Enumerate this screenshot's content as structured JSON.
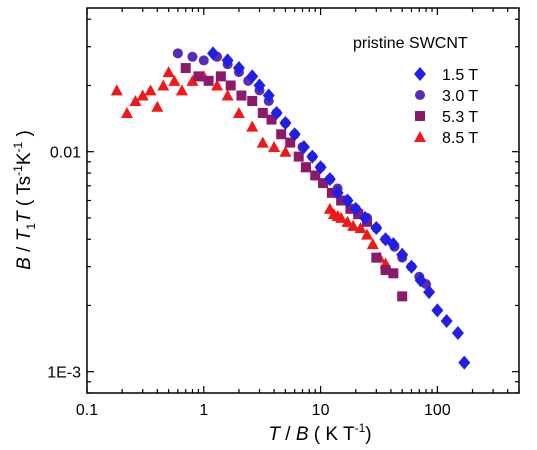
{
  "chart_data": {
    "type": "scatter",
    "title": "",
    "x_scale": "log",
    "y_scale": "log",
    "xlim": [
      0.1,
      500
    ],
    "ylim": [
      0.0008,
      0.045
    ],
    "x_ticks": [
      {
        "value": 0.1,
        "label": "0.1"
      },
      {
        "value": 1,
        "label": "1"
      },
      {
        "value": 10,
        "label": "10"
      },
      {
        "value": 100,
        "label": "100"
      }
    ],
    "y_ticks": [
      {
        "value": 0.001,
        "label": "1E-3"
      },
      {
        "value": 0.01,
        "label": "0.01"
      }
    ],
    "xlabel": {
      "italic1": "T",
      "plain1": " / ",
      "italic2": "B",
      "plain2": " ( K T",
      "sup": "-1",
      "plain3": ")"
    },
    "ylabel": {
      "italic1": "B",
      "plain1": " / ",
      "italic2": "T",
      "sub": "1",
      "italic3": "T",
      "plain2": " ( Ts",
      "sup1": "-1",
      "plain3": "K",
      "sup2": "-1",
      "plain4": " )"
    },
    "legend": {
      "title": "pristine SWCNT",
      "position": "top-right"
    },
    "series": [
      {
        "name": "1.5 T",
        "marker": "diamond",
        "color": "#1f1fe6",
        "points": [
          [
            1.2,
            0.028
          ],
          [
            1.6,
            0.026
          ],
          [
            2.0,
            0.024
          ],
          [
            2.6,
            0.022
          ],
          [
            3.0,
            0.02
          ],
          [
            3.6,
            0.018
          ],
          [
            4.2,
            0.015
          ],
          [
            5.0,
            0.0135
          ],
          [
            6.0,
            0.012
          ],
          [
            7.2,
            0.0105
          ],
          [
            8.5,
            0.0095
          ],
          [
            10,
            0.0085
          ],
          [
            12,
            0.0075
          ],
          [
            14,
            0.0065
          ],
          [
            17,
            0.006
          ],
          [
            20,
            0.0055
          ],
          [
            24,
            0.005
          ],
          [
            30,
            0.0045
          ],
          [
            36,
            0.004
          ],
          [
            42,
            0.0038
          ],
          [
            50,
            0.0034
          ],
          [
            60,
            0.003
          ],
          [
            72,
            0.0026
          ],
          [
            85,
            0.0023
          ],
          [
            100,
            0.0019
          ],
          [
            120,
            0.0017
          ],
          [
            150,
            0.0015
          ],
          [
            170,
            0.0011
          ]
        ]
      },
      {
        "name": "3.0 T",
        "marker": "circle",
        "color": "#5a2ab8",
        "points": [
          [
            0.6,
            0.028
          ],
          [
            0.8,
            0.027
          ],
          [
            1.0,
            0.026
          ],
          [
            1.3,
            0.027
          ],
          [
            1.6,
            0.025
          ],
          [
            2.0,
            0.023
          ],
          [
            2.4,
            0.021
          ],
          [
            3.0,
            0.019
          ],
          [
            3.6,
            0.017
          ],
          [
            4.2,
            0.015
          ],
          [
            5.0,
            0.0135
          ],
          [
            6.0,
            0.012
          ],
          [
            7.0,
            0.0105
          ],
          [
            8.5,
            0.0095
          ],
          [
            10,
            0.0085
          ],
          [
            12,
            0.0075
          ],
          [
            14,
            0.0068
          ],
          [
            17,
            0.006
          ],
          [
            20,
            0.0055
          ],
          [
            25,
            0.005
          ],
          [
            30,
            0.0045
          ],
          [
            36,
            0.004
          ],
          [
            43,
            0.0037
          ],
          [
            50,
            0.0033
          ],
          [
            60,
            0.003
          ],
          [
            70,
            0.0027
          ],
          [
            80,
            0.0025
          ]
        ]
      },
      {
        "name": "5.3 T",
        "marker": "square",
        "color": "#8c1a6a",
        "points": [
          [
            0.7,
            0.024
          ],
          [
            0.9,
            0.022
          ],
          [
            1.1,
            0.021
          ],
          [
            1.4,
            0.022
          ],
          [
            1.7,
            0.02
          ],
          [
            2.1,
            0.018
          ],
          [
            2.6,
            0.017
          ],
          [
            3.2,
            0.015
          ],
          [
            3.8,
            0.014
          ],
          [
            4.6,
            0.012
          ],
          [
            5.5,
            0.011
          ],
          [
            6.5,
            0.0095
          ],
          [
            7.5,
            0.0085
          ],
          [
            9.0,
            0.0078
          ],
          [
            10.5,
            0.0072
          ],
          [
            12.5,
            0.0065
          ],
          [
            15,
            0.006
          ],
          [
            18,
            0.0055
          ],
          [
            21,
            0.0052
          ],
          [
            25,
            0.0048
          ],
          [
            30,
            0.0033
          ],
          [
            36,
            0.0029
          ],
          [
            42,
            0.0028
          ],
          [
            50,
            0.0022
          ]
        ]
      },
      {
        "name": "8.5 T",
        "marker": "triangle",
        "color": "#f01818",
        "points": [
          [
            0.18,
            0.019
          ],
          [
            0.22,
            0.015
          ],
          [
            0.26,
            0.017
          ],
          [
            0.3,
            0.018
          ],
          [
            0.35,
            0.019
          ],
          [
            0.4,
            0.016
          ],
          [
            0.45,
            0.02
          ],
          [
            0.5,
            0.023
          ],
          [
            0.56,
            0.021
          ],
          [
            0.65,
            0.019
          ],
          [
            0.8,
            0.021
          ],
          [
            1.0,
            0.022
          ],
          [
            1.3,
            0.02
          ],
          [
            1.6,
            0.018
          ],
          [
            2.0,
            0.015
          ],
          [
            2.6,
            0.013
          ],
          [
            3.2,
            0.011
          ],
          [
            4.0,
            0.0105
          ],
          [
            5.0,
            0.01
          ],
          [
            7.5,
            0.0085
          ],
          [
            12,
            0.0055
          ],
          [
            13,
            0.0052
          ],
          [
            14,
            0.0051
          ],
          [
            15,
            0.005
          ],
          [
            17,
            0.0048
          ],
          [
            19,
            0.0046
          ],
          [
            22,
            0.0045
          ],
          [
            25,
            0.0042
          ],
          [
            28,
            0.0038
          ],
          [
            32,
            0.0033
          ],
          [
            36,
            0.0031
          ]
        ]
      }
    ]
  }
}
